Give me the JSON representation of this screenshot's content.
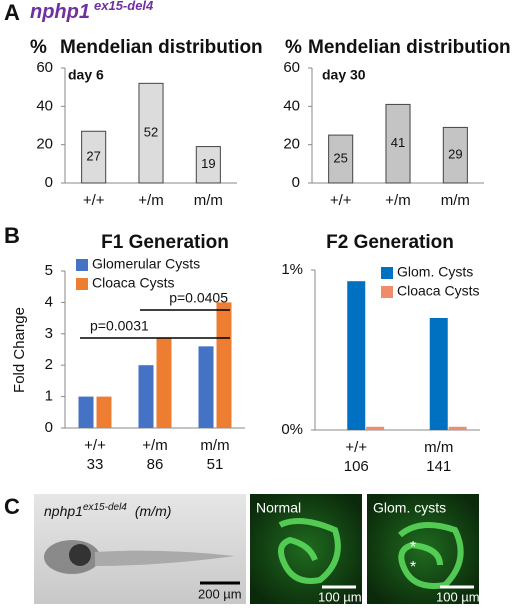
{
  "header": {
    "gene": "nphp1",
    "allele": "ex15-del4"
  },
  "panel_labels": [
    "A",
    "B",
    "C"
  ],
  "chart_data": [
    {
      "type": "bar",
      "title": "Mendelian distribution",
      "y_label": "%",
      "annotation": "day 6",
      "categories": [
        "+/+",
        "+/m",
        "m/m"
      ],
      "values": [
        27,
        52,
        19
      ],
      "color": "#dcdcdc",
      "ylim": [
        0,
        60
      ],
      "yticks": [
        0,
        20,
        40,
        60
      ]
    },
    {
      "type": "bar",
      "title": "Mendelian distribution",
      "y_label": "%",
      "annotation": "day 30",
      "categories": [
        "+/+",
        "+/m",
        "m/m"
      ],
      "values": [
        25,
        41,
        29
      ],
      "color": "#c4c4c4",
      "ylim": [
        0,
        60
      ],
      "yticks": [
        0,
        20,
        40,
        60
      ]
    },
    {
      "type": "grouped-bar",
      "title": "F1 Generation",
      "y_label": "Fold Change",
      "categories": [
        "+/+",
        "+/m",
        "m/m"
      ],
      "n": [
        33,
        86,
        51
      ],
      "series": [
        {
          "name": "Glomerular Cysts",
          "color": "#4472c4",
          "values": [
            1,
            2,
            2.6
          ]
        },
        {
          "name": "Cloaca Cysts",
          "color": "#ed7d31",
          "values": [
            1,
            2.85,
            4
          ]
        }
      ],
      "ylim": [
        0,
        5
      ],
      "yticks": [
        0,
        1,
        2,
        3,
        4,
        5
      ],
      "annotations": [
        "p=0.0031",
        "p=0.0405"
      ]
    },
    {
      "type": "grouped-bar",
      "title": "F2 Generation",
      "categories": [
        "+/+",
        "m/m"
      ],
      "n": [
        106,
        141
      ],
      "series": [
        {
          "name": "Glom. Cysts",
          "color": "#0070c0",
          "values": [
            0.93,
            0.7
          ]
        },
        {
          "name": "Cloaca Cysts",
          "color": "#f08c6c",
          "values": [
            0.02,
            0.02
          ]
        }
      ],
      "ylim": [
        0,
        1
      ],
      "yticks": [
        {
          "value": 0,
          "label": "0%"
        },
        {
          "value": 1,
          "label": "1%"
        }
      ]
    }
  ],
  "images": {
    "genotype": "(m/m)",
    "scale_left": "200 µm",
    "normal": "Normal",
    "cysts": "Glom. cysts",
    "scale_mid": "100 µm",
    "scale_right": "100 µm",
    "marker": "*"
  }
}
